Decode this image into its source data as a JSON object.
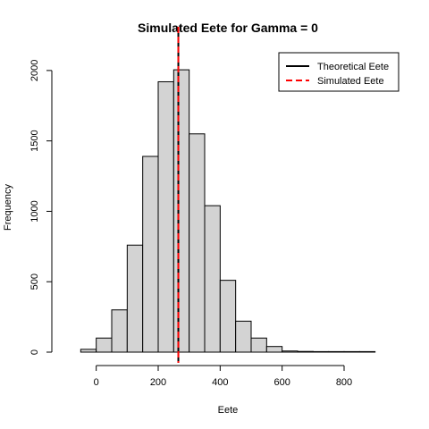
{
  "chart_data": {
    "type": "bar",
    "title": "Simulated Eete for Gamma =  0",
    "xlabel": "Eete",
    "ylabel": "Frequency",
    "bins": [
      {
        "start": -50,
        "end": 0,
        "count": 20
      },
      {
        "start": 0,
        "end": 50,
        "count": 100
      },
      {
        "start": 50,
        "end": 100,
        "count": 300
      },
      {
        "start": 100,
        "end": 150,
        "count": 760
      },
      {
        "start": 150,
        "end": 200,
        "count": 1390
      },
      {
        "start": 200,
        "end": 250,
        "count": 1920
      },
      {
        "start": 250,
        "end": 300,
        "count": 2005
      },
      {
        "start": 300,
        "end": 350,
        "count": 1550
      },
      {
        "start": 350,
        "end": 400,
        "count": 1040
      },
      {
        "start": 400,
        "end": 450,
        "count": 510
      },
      {
        "start": 450,
        "end": 500,
        "count": 220
      },
      {
        "start": 500,
        "end": 550,
        "count": 100
      },
      {
        "start": 550,
        "end": 600,
        "count": 40
      },
      {
        "start": 600,
        "end": 650,
        "count": 8
      },
      {
        "start": 650,
        "end": 700,
        "count": 5
      },
      {
        "start": 700,
        "end": 750,
        "count": 1
      },
      {
        "start": 750,
        "end": 800,
        "count": 1
      },
      {
        "start": 800,
        "end": 850,
        "count": 1
      },
      {
        "start": 850,
        "end": 900,
        "count": 1
      }
    ],
    "xlim": [
      -100,
      950
    ],
    "ylim": [
      0,
      2050
    ],
    "xticks": [
      0,
      200,
      400,
      600,
      800
    ],
    "yticks": [
      0,
      500,
      1000,
      1500,
      2000
    ],
    "vlines": [
      {
        "name": "Theoretical Eete",
        "x": 265,
        "color": "#000000",
        "style": "solid"
      },
      {
        "name": "Simulated Eete",
        "x": 265,
        "color": "#ff0000",
        "style": "dashed"
      }
    ],
    "legend": {
      "position": "top-right",
      "entries": [
        {
          "label": "Theoretical Eete",
          "color": "#000000",
          "style": "solid"
        },
        {
          "label": "Simulated Eete",
          "color": "#ff0000",
          "style": "dashed"
        }
      ]
    },
    "bar_fill": "#d3d3d3",
    "bar_stroke": "#000000",
    "grid": false
  }
}
